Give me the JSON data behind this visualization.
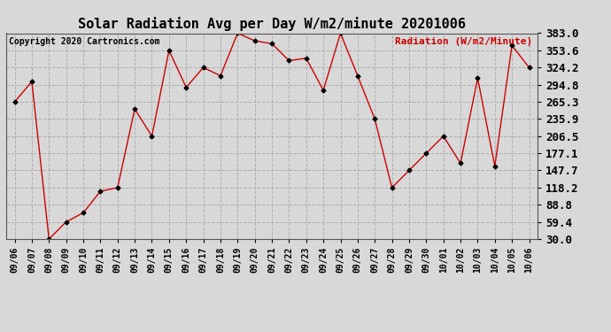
{
  "title": "Solar Radiation Avg per Day W/m2/minute 20201006",
  "copyright": "Copyright 2020 Cartronics.com",
  "legend_label": "Radiation (W/m2/Minute)",
  "dates": [
    "09/06",
    "09/07",
    "09/08",
    "09/09",
    "09/10",
    "09/11",
    "09/12",
    "09/13",
    "09/14",
    "09/15",
    "09/16",
    "09/17",
    "09/18",
    "09/19",
    "09/20",
    "09/21",
    "09/22",
    "09/23",
    "09/24",
    "09/25",
    "09/26",
    "09/27",
    "09/28",
    "09/29",
    "09/30",
    "10/01",
    "10/02",
    "10/03",
    "10/04",
    "10/05",
    "10/06"
  ],
  "values": [
    265.3,
    300.0,
    30.0,
    59.4,
    75.0,
    112.0,
    118.2,
    253.0,
    206.5,
    353.6,
    290.0,
    324.2,
    310.0,
    383.0,
    370.0,
    365.0,
    336.0,
    340.0,
    285.0,
    383.0,
    310.0,
    235.9,
    118.2,
    147.7,
    177.1,
    206.5,
    160.0,
    306.0,
    155.0,
    362.0,
    324.2
  ],
  "line_color": "#cc0000",
  "marker": "D",
  "marker_color": "#000000",
  "marker_size": 2.5,
  "line_width": 1.0,
  "ylim": [
    30.0,
    383.0
  ],
  "yticks": [
    30.0,
    59.4,
    88.8,
    118.2,
    147.7,
    177.1,
    206.5,
    235.9,
    265.3,
    294.8,
    324.2,
    353.6,
    383.0
  ],
  "grid_color": "#aaaaaa",
  "grid_style": "dashed",
  "bg_color": "#d8d8d8",
  "plot_bg_color": "#d8d8d8",
  "title_fontsize": 11,
  "axis_fontsize": 7,
  "copyright_fontsize": 7,
  "legend_fontsize": 8,
  "legend_color": "#cc0000",
  "ytick_fontsize": 9
}
